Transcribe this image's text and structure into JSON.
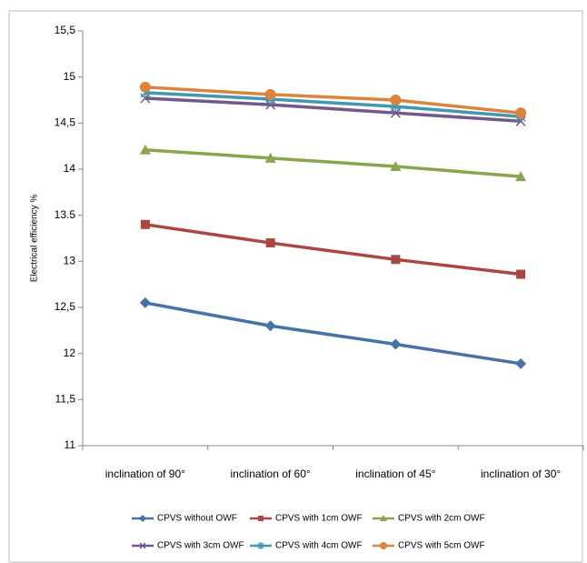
{
  "chart_data": {
    "type": "line",
    "y_label": "Electrical efficiency %",
    "categories": [
      "inclination of 90°",
      "inclination of 60°",
      "inclination of 45°",
      "inclination of 30°"
    ],
    "series": [
      {
        "name": "CPVS without OWF",
        "color": "#4572a7",
        "marker": "diamond",
        "values": [
          12.55,
          12.3,
          12.1,
          11.89
        ]
      },
      {
        "name": "CPVS with 1cm OWF",
        "color": "#aa4643",
        "marker": "square",
        "values": [
          13.4,
          13.2,
          13.02,
          12.86
        ]
      },
      {
        "name": "CPVS with 2cm OWF",
        "color": "#89a54e",
        "marker": "triangle",
        "values": [
          14.21,
          14.12,
          14.03,
          13.92
        ]
      },
      {
        "name": "CPVS with 3cm OWF",
        "color": "#71588f",
        "marker": "x",
        "values": [
          14.77,
          14.7,
          14.61,
          14.52
        ]
      },
      {
        "name": "CPVS with 4cm OWF",
        "color": "#4198af",
        "marker": "star",
        "values": [
          14.83,
          14.76,
          14.68,
          14.57
        ]
      },
      {
        "name": "CPVS with 5cm OWF",
        "color": "#db843d",
        "marker": "circle",
        "values": [
          14.89,
          14.81,
          14.75,
          14.61
        ]
      }
    ],
    "ylim": [
      11,
      15.5
    ],
    "yticks": [
      11,
      {
        "value": 11.5,
        "label": "11,5"
      },
      12,
      {
        "value": 12.5,
        "label": "12,5"
      },
      13,
      13.5,
      14,
      {
        "value": 14.5,
        "label": "14,5"
      },
      15,
      {
        "value": 15.5,
        "label": "15,5"
      }
    ]
  }
}
